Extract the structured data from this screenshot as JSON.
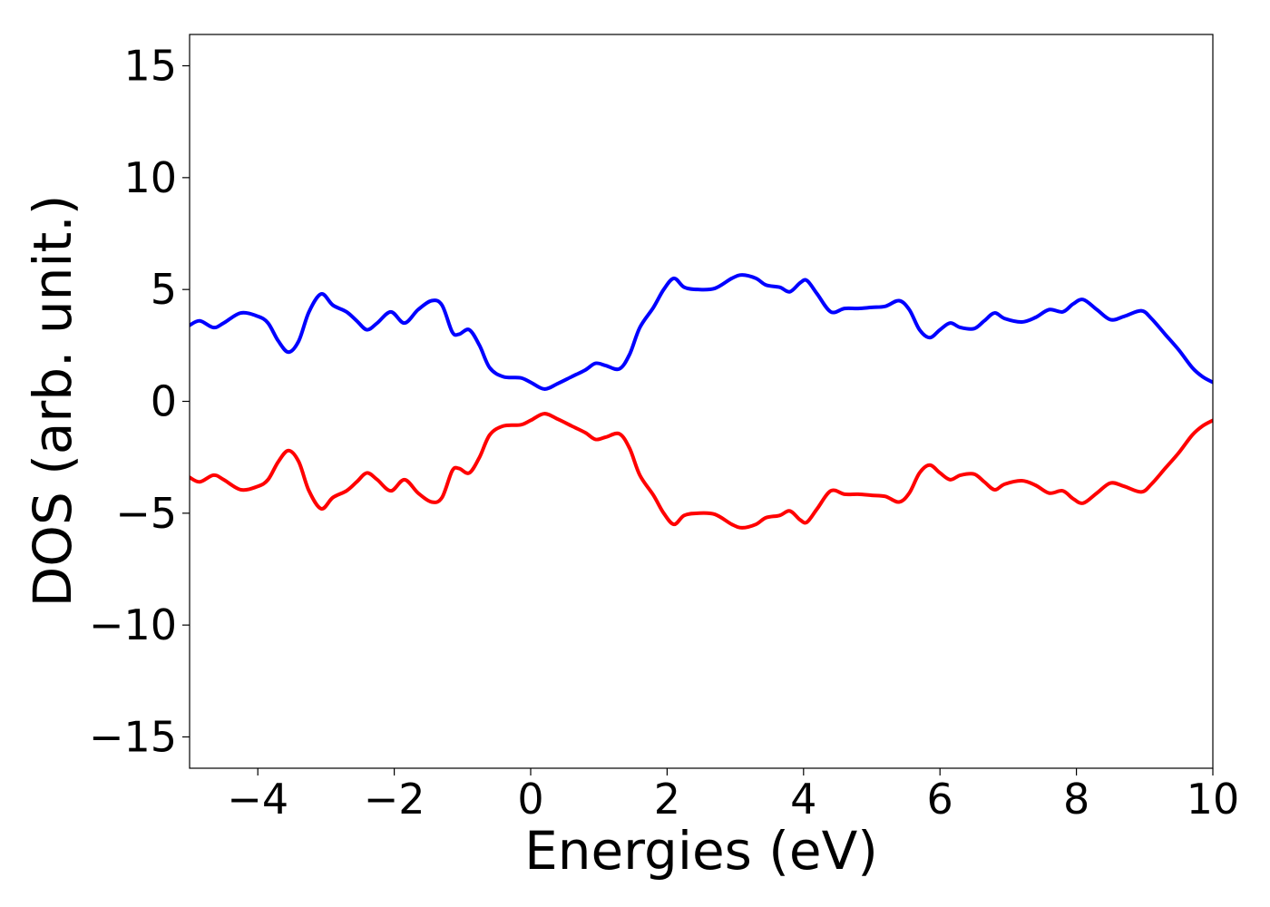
{
  "chart_data": {
    "type": "line",
    "title": "",
    "xlabel": "Energies (eV)",
    "ylabel": "DOS (arb. unit.)",
    "xlim": [
      -5,
      10
    ],
    "ylim": [
      -16.4,
      16.4
    ],
    "xticks": [
      -4,
      -2,
      0,
      2,
      4,
      6,
      8,
      10
    ],
    "xtick_labels": [
      "−4",
      "−2",
      "0",
      "2",
      "4",
      "6",
      "8",
      "10"
    ],
    "yticks": [
      15,
      10,
      5,
      0,
      -5,
      -10,
      -15
    ],
    "ytick_labels": [
      "15",
      "10",
      "5",
      "0",
      "−5",
      "−10",
      "−15"
    ],
    "grid": false,
    "legend": "none",
    "series": [
      {
        "color": "#0000ff",
        "points": [
          [
            -5.0,
            3.4
          ],
          [
            -4.85,
            3.6
          ],
          [
            -4.65,
            3.3
          ],
          [
            -4.5,
            3.5
          ],
          [
            -4.25,
            3.95
          ],
          [
            -4.0,
            3.8
          ],
          [
            -3.85,
            3.5
          ],
          [
            -3.7,
            2.7
          ],
          [
            -3.55,
            2.2
          ],
          [
            -3.4,
            2.7
          ],
          [
            -3.25,
            4.0
          ],
          [
            -3.07,
            4.8
          ],
          [
            -2.9,
            4.3
          ],
          [
            -2.7,
            4.0
          ],
          [
            -2.55,
            3.6
          ],
          [
            -2.4,
            3.2
          ],
          [
            -2.25,
            3.5
          ],
          [
            -2.05,
            4.0
          ],
          [
            -1.85,
            3.5
          ],
          [
            -1.65,
            4.1
          ],
          [
            -1.45,
            4.5
          ],
          [
            -1.3,
            4.3
          ],
          [
            -1.15,
            3.1
          ],
          [
            -1.05,
            3.0
          ],
          [
            -0.9,
            3.2
          ],
          [
            -0.75,
            2.5
          ],
          [
            -0.6,
            1.5
          ],
          [
            -0.4,
            1.1
          ],
          [
            -0.15,
            1.05
          ],
          [
            0.0,
            0.85
          ],
          [
            0.2,
            0.55
          ],
          [
            0.4,
            0.8
          ],
          [
            0.6,
            1.1
          ],
          [
            0.8,
            1.4
          ],
          [
            0.95,
            1.7
          ],
          [
            1.1,
            1.6
          ],
          [
            1.3,
            1.45
          ],
          [
            1.45,
            2.1
          ],
          [
            1.6,
            3.3
          ],
          [
            1.8,
            4.2
          ],
          [
            1.95,
            5.0
          ],
          [
            2.1,
            5.5
          ],
          [
            2.25,
            5.1
          ],
          [
            2.45,
            5.0
          ],
          [
            2.7,
            5.05
          ],
          [
            2.95,
            5.5
          ],
          [
            3.1,
            5.65
          ],
          [
            3.3,
            5.5
          ],
          [
            3.45,
            5.2
          ],
          [
            3.65,
            5.1
          ],
          [
            3.8,
            4.9
          ],
          [
            3.95,
            5.3
          ],
          [
            4.05,
            5.4
          ],
          [
            4.2,
            4.8
          ],
          [
            4.4,
            4.0
          ],
          [
            4.6,
            4.15
          ],
          [
            4.8,
            4.15
          ],
          [
            5.0,
            4.2
          ],
          [
            5.2,
            4.25
          ],
          [
            5.4,
            4.5
          ],
          [
            5.55,
            4.1
          ],
          [
            5.7,
            3.2
          ],
          [
            5.85,
            2.85
          ],
          [
            6.0,
            3.2
          ],
          [
            6.15,
            3.5
          ],
          [
            6.3,
            3.3
          ],
          [
            6.5,
            3.25
          ],
          [
            6.65,
            3.6
          ],
          [
            6.8,
            3.95
          ],
          [
            6.95,
            3.7
          ],
          [
            7.2,
            3.55
          ],
          [
            7.4,
            3.75
          ],
          [
            7.6,
            4.1
          ],
          [
            7.8,
            4.0
          ],
          [
            7.95,
            4.35
          ],
          [
            8.1,
            4.55
          ],
          [
            8.3,
            4.1
          ],
          [
            8.5,
            3.65
          ],
          [
            8.7,
            3.8
          ],
          [
            8.95,
            4.05
          ],
          [
            9.1,
            3.7
          ],
          [
            9.3,
            3.0
          ],
          [
            9.5,
            2.3
          ],
          [
            9.7,
            1.5
          ],
          [
            9.85,
            1.1
          ],
          [
            10.0,
            0.85
          ]
        ]
      },
      {
        "color": "#ff0000",
        "points": [
          [
            -5.0,
            -3.4
          ],
          [
            -4.85,
            -3.6
          ],
          [
            -4.65,
            -3.3
          ],
          [
            -4.5,
            -3.5
          ],
          [
            -4.25,
            -3.95
          ],
          [
            -4.0,
            -3.8
          ],
          [
            -3.85,
            -3.5
          ],
          [
            -3.7,
            -2.7
          ],
          [
            -3.55,
            -2.2
          ],
          [
            -3.4,
            -2.7
          ],
          [
            -3.25,
            -4.0
          ],
          [
            -3.07,
            -4.8
          ],
          [
            -2.9,
            -4.3
          ],
          [
            -2.7,
            -4.0
          ],
          [
            -2.55,
            -3.6
          ],
          [
            -2.4,
            -3.2
          ],
          [
            -2.25,
            -3.5
          ],
          [
            -2.05,
            -4.0
          ],
          [
            -1.85,
            -3.5
          ],
          [
            -1.65,
            -4.1
          ],
          [
            -1.45,
            -4.5
          ],
          [
            -1.3,
            -4.3
          ],
          [
            -1.15,
            -3.1
          ],
          [
            -1.05,
            -3.0
          ],
          [
            -0.9,
            -3.2
          ],
          [
            -0.75,
            -2.5
          ],
          [
            -0.6,
            -1.5
          ],
          [
            -0.4,
            -1.1
          ],
          [
            -0.15,
            -1.05
          ],
          [
            0.0,
            -0.85
          ],
          [
            0.2,
            -0.55
          ],
          [
            0.4,
            -0.8
          ],
          [
            0.6,
            -1.1
          ],
          [
            0.8,
            -1.4
          ],
          [
            0.95,
            -1.7
          ],
          [
            1.1,
            -1.6
          ],
          [
            1.3,
            -1.45
          ],
          [
            1.45,
            -2.1
          ],
          [
            1.6,
            -3.3
          ],
          [
            1.8,
            -4.2
          ],
          [
            1.95,
            -5.0
          ],
          [
            2.1,
            -5.5
          ],
          [
            2.25,
            -5.1
          ],
          [
            2.45,
            -5.0
          ],
          [
            2.7,
            -5.05
          ],
          [
            2.95,
            -5.5
          ],
          [
            3.1,
            -5.65
          ],
          [
            3.3,
            -5.5
          ],
          [
            3.45,
            -5.2
          ],
          [
            3.65,
            -5.1
          ],
          [
            3.8,
            -4.9
          ],
          [
            3.95,
            -5.3
          ],
          [
            4.05,
            -5.4
          ],
          [
            4.2,
            -4.8
          ],
          [
            4.4,
            -4.0
          ],
          [
            4.6,
            -4.15
          ],
          [
            4.8,
            -4.15
          ],
          [
            5.0,
            -4.2
          ],
          [
            5.2,
            -4.25
          ],
          [
            5.4,
            -4.5
          ],
          [
            5.55,
            -4.1
          ],
          [
            5.7,
            -3.2
          ],
          [
            5.85,
            -2.85
          ],
          [
            6.0,
            -3.2
          ],
          [
            6.15,
            -3.5
          ],
          [
            6.3,
            -3.3
          ],
          [
            6.5,
            -3.25
          ],
          [
            6.65,
            -3.6
          ],
          [
            6.8,
            -3.95
          ],
          [
            6.95,
            -3.7
          ],
          [
            7.2,
            -3.55
          ],
          [
            7.4,
            -3.75
          ],
          [
            7.6,
            -4.1
          ],
          [
            7.8,
            -4.0
          ],
          [
            7.95,
            -4.35
          ],
          [
            8.1,
            -4.55
          ],
          [
            8.3,
            -4.1
          ],
          [
            8.5,
            -3.65
          ],
          [
            8.7,
            -3.8
          ],
          [
            8.95,
            -4.05
          ],
          [
            9.1,
            -3.7
          ],
          [
            9.3,
            -3.0
          ],
          [
            9.5,
            -2.3
          ],
          [
            9.7,
            -1.5
          ],
          [
            9.85,
            -1.1
          ],
          [
            10.0,
            -0.85
          ]
        ]
      }
    ]
  }
}
